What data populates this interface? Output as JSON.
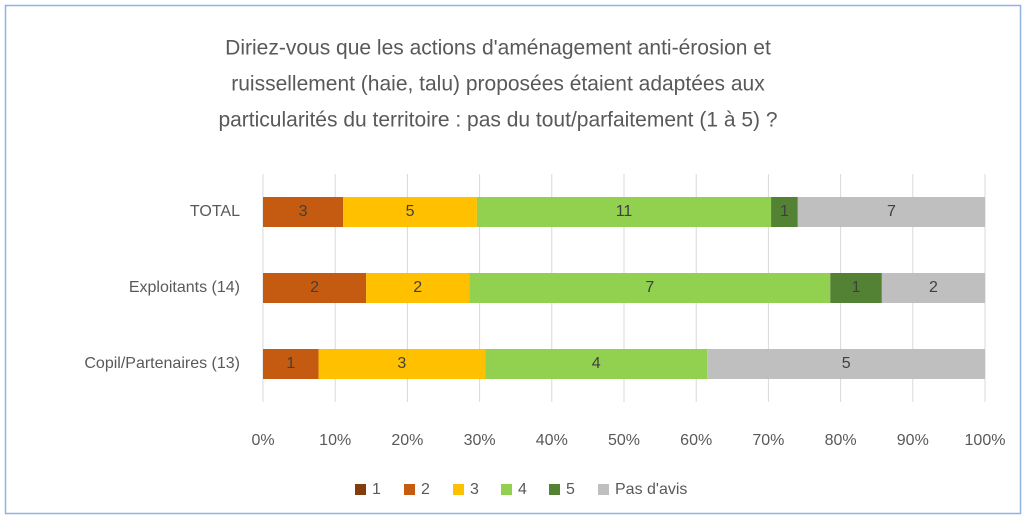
{
  "chart_data": {
    "type": "stacked_bar_percent",
    "title": [
      "Diriez-vous que les actions d'aménagement anti-érosion et",
      "ruissellement (haie, talu) proposées étaient adaptées aux",
      "particularités du territoire : pas du tout/parfaitement (1 à 5) ?"
    ],
    "categories": [
      "TOTAL",
      "Exploitants (14)",
      "Copil/Partenaires (13)"
    ],
    "series": [
      {
        "name": "1",
        "color": "#843c0c",
        "values": [
          0,
          0,
          0
        ]
      },
      {
        "name": "2",
        "color": "#c55a11",
        "values": [
          3,
          2,
          1
        ]
      },
      {
        "name": "3",
        "color": "#ffc000",
        "values": [
          5,
          2,
          3
        ]
      },
      {
        "name": "4",
        "color": "#92d050",
        "values": [
          11,
          7,
          4
        ]
      },
      {
        "name": "5",
        "color": "#548235",
        "values": [
          1,
          1,
          0
        ]
      },
      {
        "name": "Pas d'avis",
        "color": "#bfbfbf",
        "values": [
          7,
          2,
          5
        ]
      }
    ],
    "xlim": [
      0,
      100
    ],
    "xticks": [
      {
        "value": 0,
        "label": "0%"
      },
      {
        "value": 10,
        "label": "10%"
      },
      {
        "value": 20,
        "label": "20%"
      },
      {
        "value": 30,
        "label": "30%"
      },
      {
        "value": 40,
        "label": "40%"
      },
      {
        "value": 50,
        "label": "50%"
      },
      {
        "value": 60,
        "label": "60%"
      },
      {
        "value": 70,
        "label": "70%"
      },
      {
        "value": 80,
        "label": "80%"
      },
      {
        "value": 90,
        "label": "90%"
      },
      {
        "value": 100,
        "label": "100%"
      }
    ],
    "grid": true,
    "legend": "bottom"
  }
}
